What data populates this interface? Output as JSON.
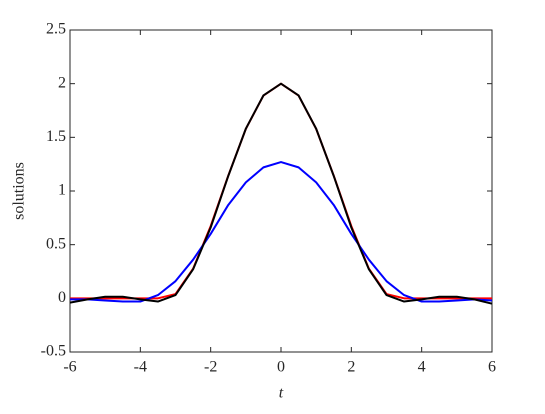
{
  "chart_data": {
    "type": "line",
    "xlabel": "t",
    "ylabel": "solutions",
    "x": [
      -6,
      -5.5,
      -5,
      -4.5,
      -4,
      -3.5,
      -3,
      -2.5,
      -2,
      -1.5,
      -1,
      -0.5,
      0,
      0.5,
      1,
      1.5,
      2,
      2.5,
      3,
      3.5,
      4,
      4.5,
      5,
      5.5,
      6
    ],
    "series": [
      {
        "color": "#ff0000",
        "values": [
          0,
          0,
          0,
          0,
          0,
          0,
          0.04,
          0.276,
          0.673,
          1.142,
          1.579,
          1.889,
          2,
          1.889,
          1.579,
          1.142,
          0.673,
          0.276,
          0.04,
          0,
          0,
          0,
          0,
          0,
          0
        ]
      },
      {
        "color": "#0000ff",
        "values": [
          -0.01,
          -0.01,
          -0.02,
          -0.03,
          -0.03,
          0.03,
          0.16,
          0.36,
          0.6,
          0.87,
          1.08,
          1.22,
          1.27,
          1.22,
          1.08,
          0.87,
          0.6,
          0.36,
          0.16,
          0.03,
          -0.03,
          -0.03,
          -0.02,
          -0.01,
          -0.02
        ]
      },
      {
        "color": "#000000",
        "values": [
          -0.04,
          -0.01,
          0.015,
          0.015,
          -0.01,
          -0.03,
          0.03,
          0.27,
          0.66,
          1.14,
          1.58,
          1.89,
          2,
          1.89,
          1.58,
          1.14,
          0.66,
          0.27,
          0.03,
          -0.03,
          -0.01,
          0.015,
          0.015,
          -0.01,
          -0.05
        ]
      }
    ],
    "xlim": [
      -6,
      6
    ],
    "xticks": [
      -6,
      -4,
      -2,
      0,
      2,
      4,
      6
    ],
    "ylim": [
      -0.5,
      2.5
    ],
    "yticks": [
      -0.5,
      0,
      0.5,
      1,
      1.5,
      2,
      2.5
    ]
  }
}
